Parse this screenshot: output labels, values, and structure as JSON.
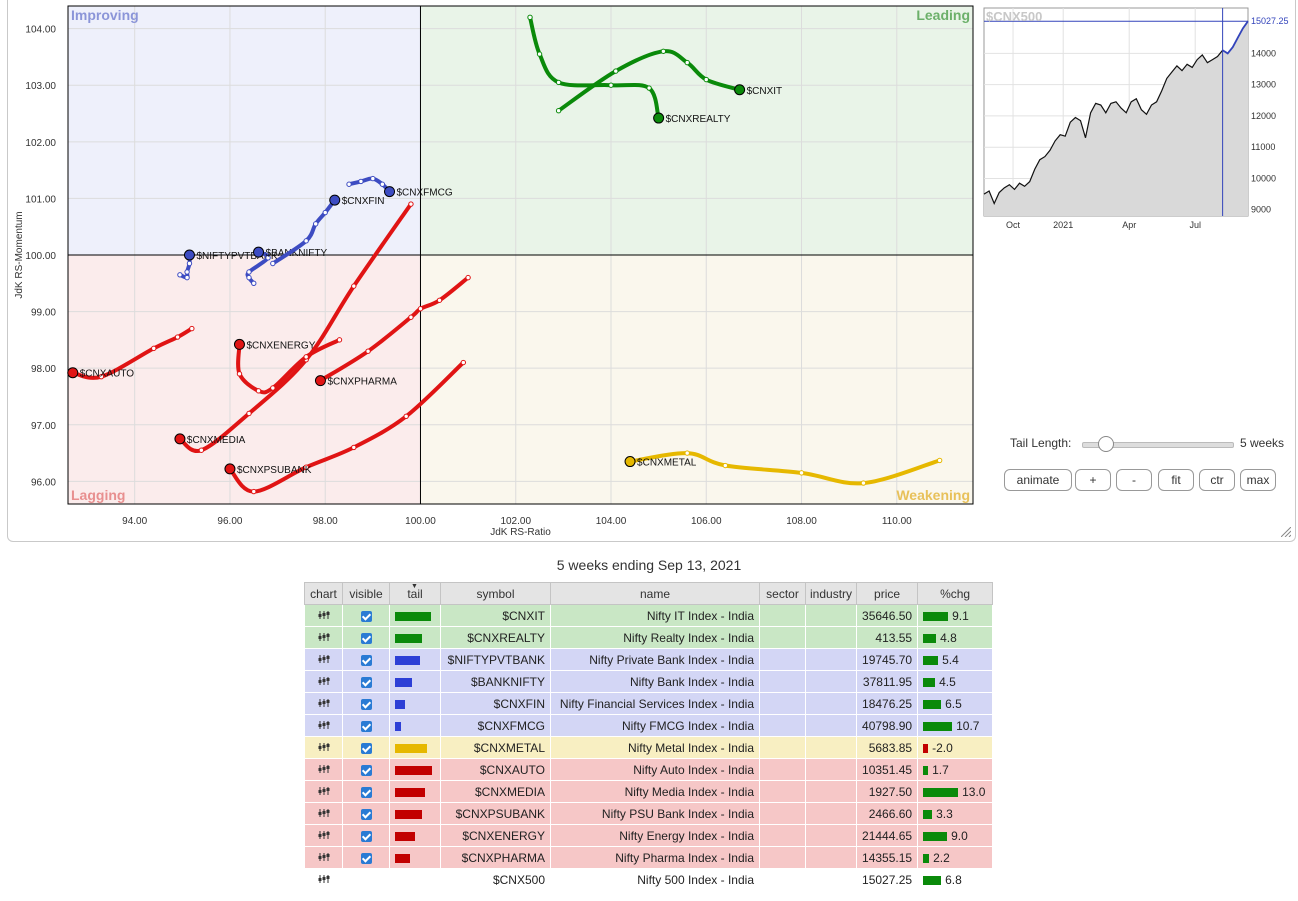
{
  "rrg": {
    "x_axis_label": "JdK RS-Ratio",
    "y_axis_label": "JdK RS-Momentum",
    "x_ticks": [
      "94.00",
      "96.00",
      "98.00",
      "100.00",
      "102.00",
      "104.00",
      "106.00",
      "108.00",
      "110.00"
    ],
    "y_ticks": [
      "104.00",
      "103.00",
      "102.00",
      "101.00",
      "100.00",
      "99.00",
      "98.00",
      "97.00",
      "96.00"
    ],
    "quadrants": {
      "improving": "Improving",
      "leading": "Leading",
      "lagging": "Lagging",
      "weakening": "Weakening"
    },
    "quadrant_colors": {
      "improving": "#eef0fb",
      "leading": "#e9f4e8",
      "lagging": "#fbecec",
      "weakening": "#faf7ed"
    },
    "quadrant_label_colors": {
      "improving": "#8b95d8",
      "leading": "#6cb06a",
      "lagging": "#e88f8f",
      "weakening": "#e8c15a"
    }
  },
  "chart_data": [
    {
      "type": "scatter",
      "xlabel": "JdK RS-Ratio",
      "ylabel": "JdK RS-Momentum",
      "xlim": [
        92.6,
        111.6
      ],
      "ylim": [
        95.6,
        104.4
      ],
      "series": [
        {
          "name": "$CNXIT",
          "color": "#0a8a0a",
          "points": [
            [
              102.9,
              102.55
            ],
            [
              104.1,
              103.25
            ],
            [
              105.1,
              103.6
            ],
            [
              105.6,
              103.4
            ],
            [
              106.0,
              103.1
            ],
            [
              106.7,
              102.92
            ]
          ]
        },
        {
          "name": "$CNXREALTY",
          "color": "#0a8a0a",
          "points": [
            [
              102.3,
              104.2
            ],
            [
              102.5,
              103.55
            ],
            [
              102.9,
              103.05
            ],
            [
              104.0,
              103.0
            ],
            [
              104.8,
              102.95
            ],
            [
              105.0,
              102.42
            ]
          ]
        },
        {
          "name": "$NIFTYPVTBANK",
          "color": "#3d4cc2",
          "points": [
            [
              94.95,
              99.65
            ],
            [
              95.1,
              99.6
            ],
            [
              95.1,
              99.7
            ],
            [
              95.15,
              99.85
            ],
            [
              95.15,
              100.0
            ]
          ]
        },
        {
          "name": "$BANKNIFTY",
          "color": "#3d4cc2",
          "points": [
            [
              96.5,
              99.5
            ],
            [
              96.4,
              99.6
            ],
            [
              96.4,
              99.7
            ],
            [
              96.8,
              99.95
            ],
            [
              96.6,
              100.05
            ]
          ]
        },
        {
          "name": "$CNXFIN",
          "color": "#3d4cc2",
          "points": [
            [
              96.9,
              99.85
            ],
            [
              97.6,
              100.25
            ],
            [
              97.8,
              100.55
            ],
            [
              98.0,
              100.75
            ],
            [
              98.2,
              100.97
            ]
          ]
        },
        {
          "name": "$CNXFMCG",
          "color": "#3d4cc2",
          "points": [
            [
              98.5,
              101.25
            ],
            [
              98.75,
              101.3
            ],
            [
              99.0,
              101.35
            ],
            [
              99.2,
              101.25
            ],
            [
              99.35,
              101.12
            ]
          ]
        },
        {
          "name": "$CNXAUTO",
          "color": "#e01414",
          "points": [
            [
              95.2,
              98.7
            ],
            [
              94.9,
              98.55
            ],
            [
              94.4,
              98.35
            ],
            [
              93.3,
              97.85
            ],
            [
              92.7,
              97.92
            ]
          ]
        },
        {
          "name": "$CNXMEDIA",
          "color": "#e01414",
          "points": [
            [
              99.8,
              100.9
            ],
            [
              98.6,
              99.45
            ],
            [
              97.6,
              98.15
            ],
            [
              96.4,
              97.2
            ],
            [
              95.4,
              96.55
            ],
            [
              94.95,
              96.75
            ]
          ]
        },
        {
          "name": "$CNXPSUBANK",
          "color": "#e01414",
          "points": [
            [
              100.9,
              98.1
            ],
            [
              99.7,
              97.15
            ],
            [
              98.6,
              96.6
            ],
            [
              97.6,
              96.25
            ],
            [
              96.5,
              95.82
            ],
            [
              96.0,
              96.22
            ]
          ]
        },
        {
          "name": "$CNXENERGY",
          "color": "#e01414",
          "points": [
            [
              98.3,
              98.5
            ],
            [
              97.6,
              98.2
            ],
            [
              96.9,
              97.65
            ],
            [
              96.6,
              97.6
            ],
            [
              96.2,
              97.9
            ],
            [
              96.2,
              98.42
            ]
          ]
        },
        {
          "name": "$CNXPHARMA",
          "color": "#e01414",
          "points": [
            [
              101.0,
              99.6
            ],
            [
              100.4,
              99.2
            ],
            [
              100.0,
              99.05
            ],
            [
              99.8,
              98.9
            ],
            [
              98.9,
              98.3
            ],
            [
              97.9,
              97.78
            ]
          ]
        },
        {
          "name": "$CNXMETAL",
          "color": "#e6b800",
          "points": [
            [
              110.9,
              96.37
            ],
            [
              109.3,
              95.97
            ],
            [
              108.0,
              96.15
            ],
            [
              106.4,
              96.28
            ],
            [
              105.6,
              96.5
            ],
            [
              104.4,
              96.35
            ]
          ]
        }
      ]
    },
    {
      "type": "area",
      "title": "$CNX500",
      "x_ticks": [
        "Oct",
        "2021",
        "Apr",
        "Jul"
      ],
      "y_ticks": [
        "15027.25",
        "14000",
        "13000",
        "12000",
        "11000",
        "10000",
        "9000"
      ],
      "ylim": [
        8800,
        15450
      ],
      "last_value": "15027.25",
      "values": [
        9500,
        9600,
        9200,
        9550,
        9700,
        9800,
        9650,
        9850,
        9750,
        9900,
        10300,
        10600,
        10700,
        10900,
        11200,
        11400,
        11350,
        11800,
        11950,
        11850,
        11300,
        12100,
        12400,
        12350,
        12100,
        12400,
        12450,
        12250,
        12100,
        12450,
        12550,
        12200,
        12050,
        12350,
        12450,
        12800,
        13200,
        13400,
        13600,
        13450,
        13650,
        13550,
        13800,
        13950,
        13700,
        13800,
        13900,
        14100,
        14000,
        14200,
        14500,
        14800,
        15027
      ]
    }
  ],
  "controls": {
    "tail_length_label": "Tail Length:",
    "tail_length_value": "5 weeks",
    "tail_length_fraction": 0.1,
    "buttons": [
      "animate",
      "+",
      "-",
      "fit",
      "ctr",
      "max"
    ]
  },
  "caption": "5 weeks ending Sep 13, 2021",
  "table": {
    "headers": [
      "chart",
      "visible",
      "tail",
      "symbol",
      "name",
      "sector",
      "industry",
      "price",
      "%chg"
    ],
    "rows": [
      {
        "symbol": "$CNXIT",
        "name": "Nifty IT Index - India",
        "price": "35646.50",
        "chg": "9.1",
        "bg": "#c9e7c5",
        "tail_color": "#0a8a0a",
        "tail": 0.9,
        "chg_val": 9.1
      },
      {
        "symbol": "$CNXREALTY",
        "name": "Nifty Realty Index - India",
        "price": "413.55",
        "chg": "4.8",
        "bg": "#c9e7c5",
        "tail_color": "#0a8a0a",
        "tail": 0.68,
        "chg_val": 4.8
      },
      {
        "symbol": "$NIFTYPVTBANK",
        "name": "Nifty Private Bank Index - India",
        "price": "19745.70",
        "chg": "5.4",
        "bg": "#d3d6f5",
        "tail_color": "#2d3fd6",
        "tail": 0.62,
        "chg_val": 5.4
      },
      {
        "symbol": "$BANKNIFTY",
        "name": "Nifty Bank Index - India",
        "price": "37811.95",
        "chg": "4.5",
        "bg": "#d3d6f5",
        "tail_color": "#2d3fd6",
        "tail": 0.42,
        "chg_val": 4.5
      },
      {
        "symbol": "$CNXFIN",
        "name": "Nifty Financial Services Index - India",
        "price": "18476.25",
        "chg": "6.5",
        "bg": "#d3d6f5",
        "tail_color": "#2d3fd6",
        "tail": 0.25,
        "chg_val": 6.5
      },
      {
        "symbol": "$CNXFMCG",
        "name": "Nifty FMCG Index - India",
        "price": "40798.90",
        "chg": "10.7",
        "bg": "#d3d6f5",
        "tail_color": "#2d3fd6",
        "tail": 0.16,
        "chg_val": 10.7
      },
      {
        "symbol": "$CNXMETAL",
        "name": "Nifty Metal Index - India",
        "price": "5683.85",
        "chg": "-2.0",
        "bg": "#f8efc2",
        "tail_color": "#e6b800",
        "tail": 0.8,
        "chg_val": -2.0
      },
      {
        "symbol": "$CNXAUTO",
        "name": "Nifty Auto Index - India",
        "price": "10351.45",
        "chg": "1.7",
        "bg": "#f6c7c7",
        "tail_color": "#c20000",
        "tail": 0.92,
        "chg_val": 1.7
      },
      {
        "symbol": "$CNXMEDIA",
        "name": "Nifty Media Index - India",
        "price": "1927.50",
        "chg": "13.0",
        "bg": "#f6c7c7",
        "tail_color": "#c20000",
        "tail": 0.75,
        "chg_val": 13.0
      },
      {
        "symbol": "$CNXPSUBANK",
        "name": "Nifty PSU Bank Index - India",
        "price": "2466.60",
        "chg": "3.3",
        "bg": "#f6c7c7",
        "tail_color": "#c20000",
        "tail": 0.68,
        "chg_val": 3.3
      },
      {
        "symbol": "$CNXENERGY",
        "name": "Nifty Energy Index - India",
        "price": "21444.65",
        "chg": "9.0",
        "bg": "#f6c7c7",
        "tail_color": "#c20000",
        "tail": 0.5,
        "chg_val": 9.0
      },
      {
        "symbol": "$CNXPHARMA",
        "name": "Nifty Pharma Index - India",
        "price": "14355.15",
        "chg": "2.2",
        "bg": "#f6c7c7",
        "tail_color": "#c20000",
        "tail": 0.38,
        "chg_val": 2.2
      },
      {
        "symbol": "$CNX500",
        "name": "Nifty 500 Index - India",
        "price": "15027.25",
        "chg": "6.8",
        "bg": "#ffffff",
        "tail_color": "",
        "tail": 0,
        "chg_val": 6.8,
        "benchmark": true
      }
    ]
  },
  "icons": {
    "chart": "chart-icon",
    "visible": "checkbox-checked-icon",
    "sort": "sort-arrow-icon",
    "resize": "resize-grip-icon"
  }
}
